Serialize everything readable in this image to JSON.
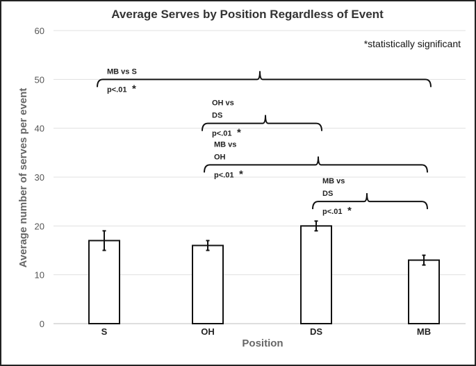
{
  "chart_data": {
    "type": "bar",
    "title": "Average Serves by Position Regardless of Event",
    "xlabel": "Position",
    "ylabel": "Average number of serves per event",
    "categories": [
      "S",
      "OH",
      "DS",
      "MB"
    ],
    "values": [
      17,
      16,
      20,
      13
    ],
    "error": [
      2,
      1,
      1,
      1
    ],
    "ylim": [
      0,
      60
    ],
    "yticks": [
      0,
      10,
      20,
      30,
      40,
      50,
      60
    ],
    "grid": true,
    "note": "*statistically significant",
    "comparisons": [
      {
        "from": "S",
        "to": "MB",
        "level": 50,
        "lines": [
          "MB vs S"
        ],
        "p": "p<.01",
        "star": "*"
      },
      {
        "from": "OH",
        "to": "DS",
        "level": 41,
        "lines": [
          "OH vs",
          "DS"
        ],
        "p": "p<.01",
        "star": "*"
      },
      {
        "from": "OH",
        "to": "MB",
        "level": 32.5,
        "lines": [
          "MB vs",
          "OH"
        ],
        "p": "p<.01",
        "star": "*"
      },
      {
        "from": "DS",
        "to": "MB",
        "level": 25,
        "lines": [
          "MB vs",
          "DS"
        ],
        "p": "p<.01",
        "star": "*"
      }
    ]
  }
}
